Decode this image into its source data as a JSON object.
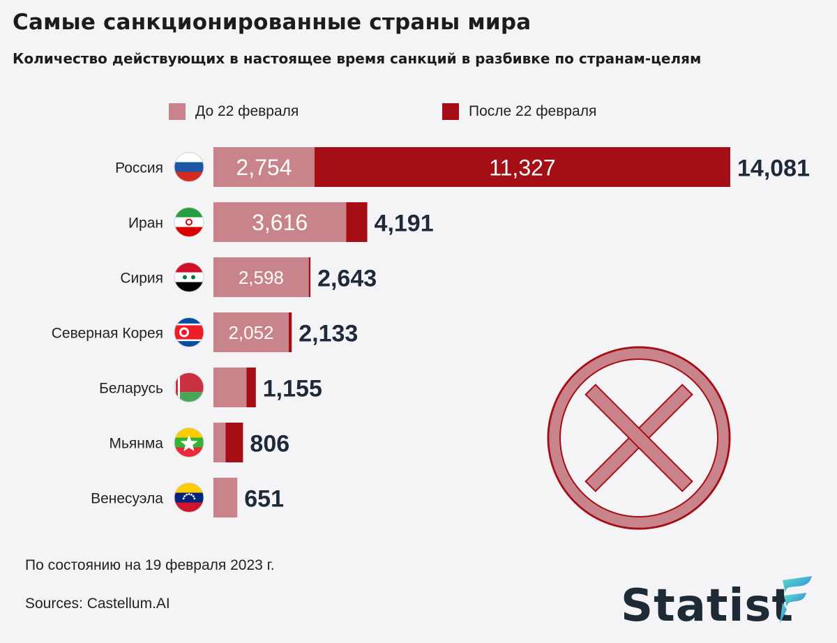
{
  "title": "Самые санкционированные страны мира",
  "subtitle": "Количество действующих в настоящее время санкций в разбивке по странам-целям",
  "legend": {
    "before": "До 22 февраля",
    "after": "После 22 февраля"
  },
  "colors": {
    "before": "#c9838a",
    "after": "#a50e14",
    "total_text": "#1e2a3a",
    "background": "#f4f4f6"
  },
  "chart_data": {
    "type": "bar",
    "orientation": "horizontal",
    "stacked": true,
    "categories": [
      "Россия",
      "Иран",
      "Сирия",
      "Северная Корея",
      "Беларусь",
      "Мьянма",
      "Венесуэла"
    ],
    "series": [
      {
        "name": "До 22 февраля",
        "values": [
          2754,
          3616,
          2598,
          2052,
          900,
          330,
          651
        ]
      },
      {
        "name": "После 22 февраля",
        "values": [
          11327,
          575,
          45,
          81,
          255,
          476,
          0
        ]
      }
    ],
    "segment_labels": {
      "before": [
        "2,754",
        "3,616",
        "2,598",
        "2,052",
        "",
        "",
        ""
      ],
      "after": [
        "11,327",
        "",
        "",
        "",
        "",
        "",
        ""
      ]
    },
    "totals": [
      14081,
      4191,
      2643,
      2133,
      1155,
      806,
      651
    ],
    "total_labels": [
      "14,081",
      "4,191",
      "2,643",
      "2,133",
      "1,155",
      "806",
      "651"
    ],
    "flag_icons": [
      "russia-flag-icon",
      "iran-flag-icon",
      "syria-flag-icon",
      "north-korea-flag-icon",
      "belarus-flag-icon",
      "myanmar-flag-icon",
      "venezuela-flag-icon"
    ],
    "xlim": [
      0,
      14081
    ],
    "grid": false,
    "legend_position": "top"
  },
  "footer": {
    "note": "По состоянию на 19 февраля 2023 г.",
    "sources": "Sources: Castellum.AI",
    "brand": "Statist"
  }
}
